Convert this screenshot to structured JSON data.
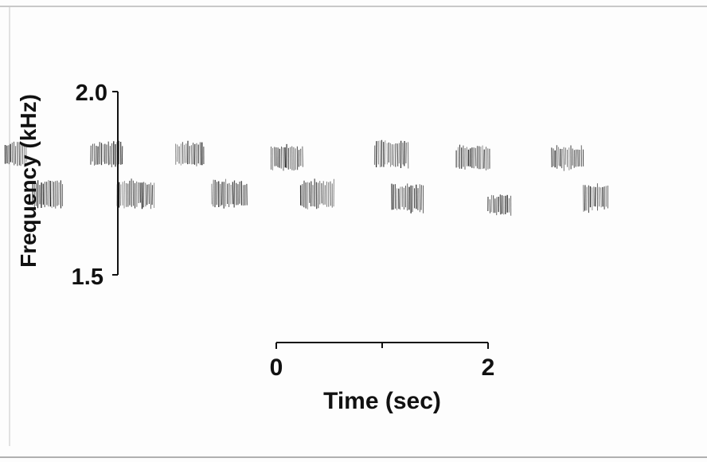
{
  "chart_data": {
    "type": "scatter",
    "title": "",
    "ylabel": "Frequency (kHz)",
    "y_ticks": [
      "2.0",
      "1.5"
    ],
    "ylim": [
      1.5,
      2.0
    ],
    "scale_bar": {
      "label": "Time (sec)",
      "ticks": [
        "0",
        "2"
      ],
      "span": [
        0,
        2
      ]
    },
    "grid": false,
    "legend": "none",
    "time_range": [
      -2.6,
      5.2
    ],
    "notes": [
      {
        "t_start": -2.56,
        "t_end": -2.35,
        "freq": 1.83,
        "bandwidth": 0.06
      },
      {
        "t_start": -2.3,
        "t_end": -2.01,
        "freq": 1.72,
        "bandwidth": 0.07
      },
      {
        "t_start": -1.75,
        "t_end": -1.45,
        "freq": 1.83,
        "bandwidth": 0.06
      },
      {
        "t_start": -1.5,
        "t_end": -1.14,
        "freq": 1.72,
        "bandwidth": 0.07
      },
      {
        "t_start": -0.95,
        "t_end": -0.68,
        "freq": 1.83,
        "bandwidth": 0.06
      },
      {
        "t_start": -0.61,
        "t_end": -0.27,
        "freq": 1.72,
        "bandwidth": 0.07
      },
      {
        "t_start": -0.05,
        "t_end": 0.26,
        "freq": 1.82,
        "bandwidth": 0.06
      },
      {
        "t_start": 0.23,
        "t_end": 0.56,
        "freq": 1.72,
        "bandwidth": 0.07
      },
      {
        "t_start": 0.93,
        "t_end": 1.25,
        "freq": 1.83,
        "bandwidth": 0.07
      },
      {
        "t_start": 1.09,
        "t_end": 1.39,
        "freq": 1.71,
        "bandwidth": 0.07
      },
      {
        "t_start": 1.7,
        "t_end": 2.03,
        "freq": 1.82,
        "bandwidth": 0.06
      },
      {
        "t_start": 2.0,
        "t_end": 2.22,
        "freq": 1.69,
        "bandwidth": 0.05
      },
      {
        "t_start": 2.6,
        "t_end": 2.91,
        "freq": 1.82,
        "bandwidth": 0.06
      },
      {
        "t_start": 2.9,
        "t_end": 3.14,
        "freq": 1.71,
        "bandwidth": 0.07
      }
    ],
    "colors": {
      "marks": "#1a1a1a",
      "axes": "#111111",
      "background": "#fdfdfd"
    }
  }
}
